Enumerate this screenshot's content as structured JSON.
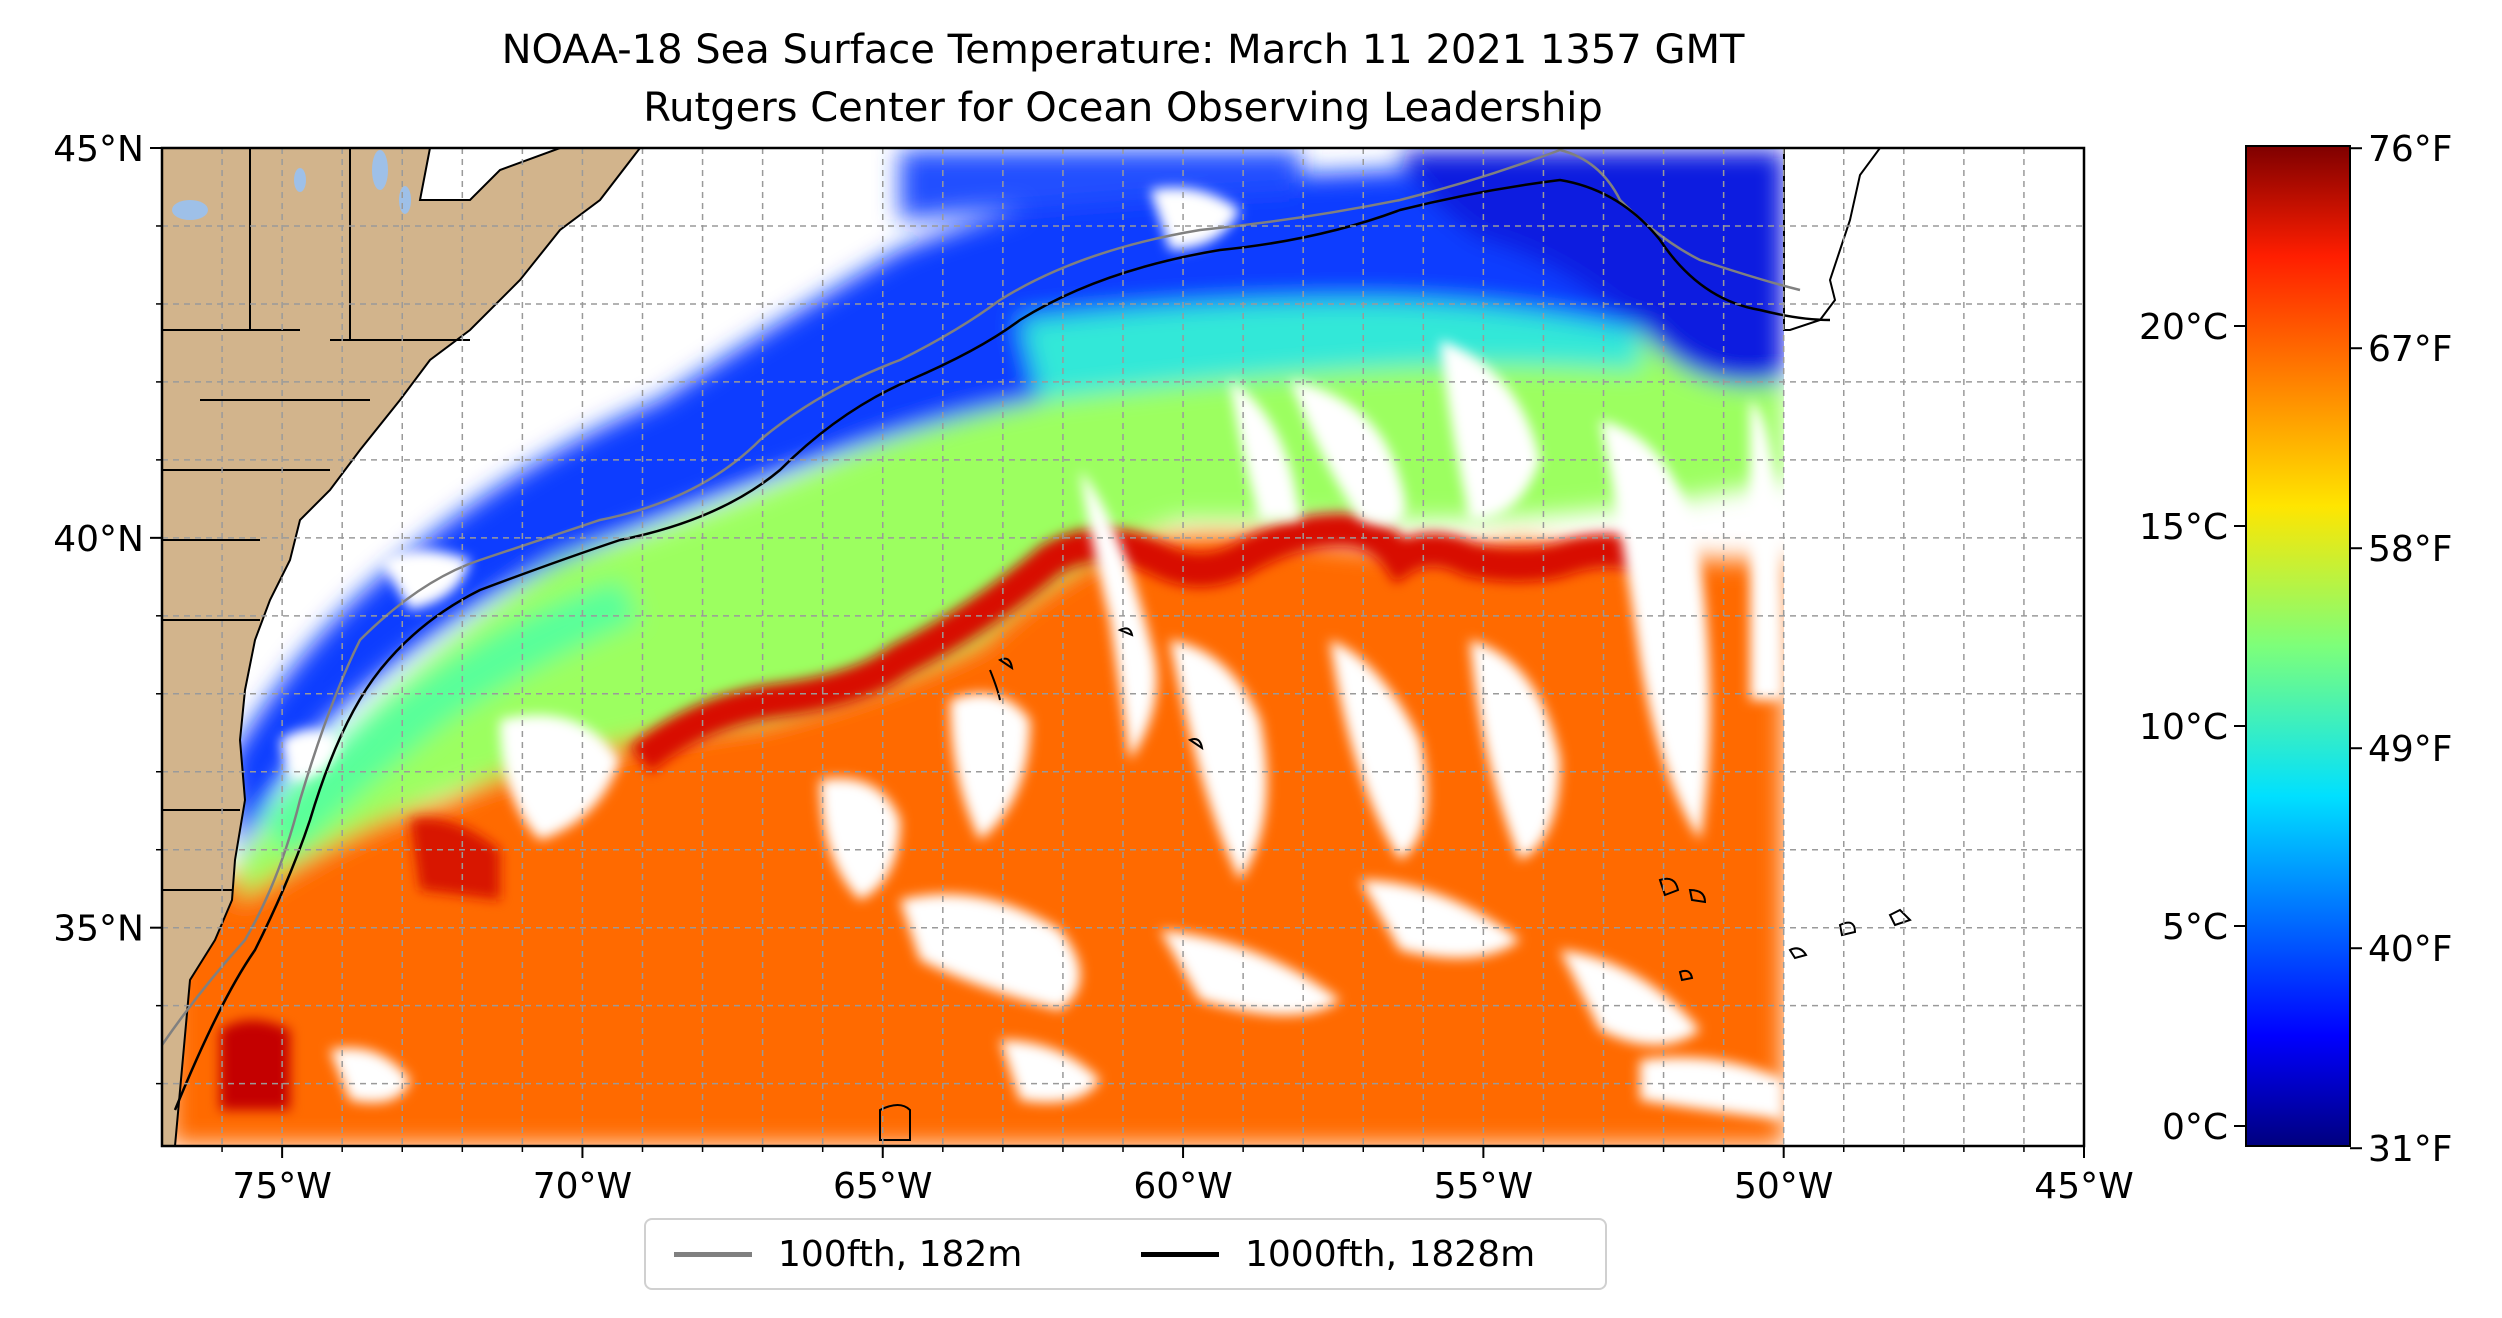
{
  "title_line1": "NOAA-18 Sea Surface Temperature: March 11 2021 1357 GMT",
  "title_line2": "Rutgers Center for Ocean Observing Leadership",
  "map": {
    "lon_range": [
      -77,
      -45
    ],
    "lat_range": [
      32.2,
      45
    ],
    "lat_ticks": [
      {
        "value": 45,
        "label": "45°N"
      },
      {
        "value": 40,
        "label": "40°N"
      },
      {
        "value": 35,
        "label": "35°N"
      }
    ],
    "lon_ticks": [
      {
        "value": -75,
        "label": "75°W"
      },
      {
        "value": -70,
        "label": "70°W"
      },
      {
        "value": -65,
        "label": "65°W"
      },
      {
        "value": -60,
        "label": "60°W"
      },
      {
        "value": -55,
        "label": "55°W"
      },
      {
        "value": -50,
        "label": "50°W"
      },
      {
        "value": -45,
        "label": "45°W"
      }
    ],
    "satellite_coverage_east_limit_lon": -50,
    "land_color": "#d2b48c",
    "lake_color": "#9ec0e8",
    "gridlines": "dashed"
  },
  "legend": {
    "items": [
      {
        "label": "100fth, 182m",
        "color": "#808080"
      },
      {
        "label": "1000fth, 1828m",
        "color": "#000000"
      }
    ]
  },
  "colorbar": {
    "colormap": "jet",
    "range_celsius": [
      -0.5,
      24.5
    ],
    "celsius_ticks": [
      {
        "value": 20,
        "label": "20°C"
      },
      {
        "value": 15,
        "label": "15°C"
      },
      {
        "value": 10,
        "label": "10°C"
      },
      {
        "value": 5,
        "label": "5°C"
      },
      {
        "value": 0,
        "label": "0°C"
      }
    ],
    "fahrenheit_ticks": [
      {
        "value": 76,
        "label": "76°F"
      },
      {
        "value": 67,
        "label": "67°F"
      },
      {
        "value": 58,
        "label": "58°F"
      },
      {
        "value": 49,
        "label": "49°F"
      },
      {
        "value": 40,
        "label": "40°F"
      },
      {
        "value": 31,
        "label": "31°F"
      }
    ]
  }
}
